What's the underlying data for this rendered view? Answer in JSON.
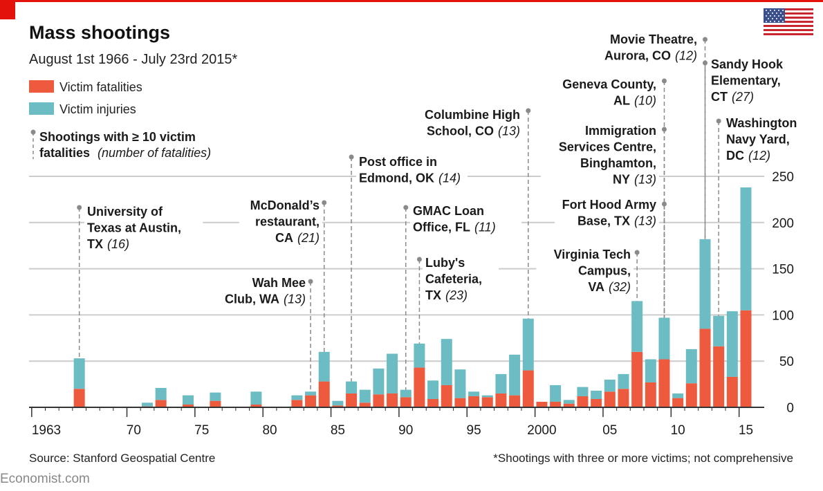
{
  "header": {
    "title": "Mass shootings",
    "subtitle": "August 1st 1966 - July 23rd 2015*"
  },
  "legend": {
    "fatalities": "Victim fatalities",
    "injuries": "Victim injuries",
    "marker_line1": "Shootings with ≥ 10 victim",
    "marker_line2a": "fatalities",
    "marker_line2b": "(number of fatalities)"
  },
  "footer": {
    "source": "Source: Stanford Geospatial Centre",
    "note": "*Shootings with three or more victims; not comprehensive",
    "brand": "Economist.com"
  },
  "colors": {
    "fatalities": "#ee5a3e",
    "injuries": "#6bbcc3",
    "accent": "#e3120b",
    "grid": "#cccccc",
    "annotation_line": "#8a8a8a"
  },
  "chart_data": {
    "type": "bar",
    "stacked": true,
    "title": "Mass shootings",
    "xlim": [
      1963,
      2015
    ],
    "ylim": [
      0,
      250
    ],
    "y_ticks": [
      0,
      50,
      100,
      150,
      200,
      250
    ],
    "x_tick_labels": [
      {
        "year": 1963,
        "label": "1963"
      },
      {
        "year": 1970,
        "label": "70"
      },
      {
        "year": 1975,
        "label": "75"
      },
      {
        "year": 1980,
        "label": "80"
      },
      {
        "year": 1985,
        "label": "85"
      },
      {
        "year": 1990,
        "label": "90"
      },
      {
        "year": 1995,
        "label": "95"
      },
      {
        "year": 2000,
        "label": "2000"
      },
      {
        "year": 2005,
        "label": "05"
      },
      {
        "year": 2010,
        "label": "10"
      },
      {
        "year": 2015,
        "label": "15"
      }
    ],
    "years": [
      1966,
      1971,
      1972,
      1974,
      1976,
      1979,
      1982,
      1983,
      1984,
      1985,
      1986,
      1987,
      1988,
      1989,
      1990,
      1991,
      1992,
      1993,
      1994,
      1995,
      1996,
      1997,
      1998,
      1999,
      2000,
      2001,
      2002,
      2003,
      2004,
      2005,
      2006,
      2007,
      2008,
      2009,
      2010,
      2011,
      2012,
      2013,
      2014,
      2015
    ],
    "fatalities": [
      20,
      1,
      8,
      3,
      7,
      3,
      8,
      13,
      28,
      2,
      15,
      5,
      14,
      15,
      11,
      43,
      9,
      24,
      10,
      12,
      11,
      15,
      13,
      40,
      6,
      6,
      4,
      12,
      9,
      17,
      20,
      60,
      27,
      52,
      10,
      26,
      85,
      66,
      33,
      105
    ],
    "injuries": [
      33,
      4,
      13,
      10,
      9,
      14,
      5,
      4,
      32,
      5,
      13,
      14,
      28,
      43,
      8,
      26,
      20,
      50,
      31,
      5,
      2,
      21,
      44,
      56,
      0,
      18,
      4,
      10,
      9,
      13,
      16,
      55,
      25,
      45,
      5,
      37,
      97,
      33,
      71,
      133
    ],
    "series": [
      {
        "name": "Victim fatalities",
        "key": "fatalities"
      },
      {
        "name": "Victim injuries",
        "key": "injuries"
      }
    ],
    "annotations": [
      {
        "year": 1966,
        "lines": [
          "University of",
          "Texas at Austin,",
          "TX"
        ],
        "num": "(16)",
        "align": "left"
      },
      {
        "year": 1983,
        "lines": [
          "Wah Mee",
          "Club, WA"
        ],
        "num": "(13)",
        "align": "right"
      },
      {
        "year": 1984,
        "lines": [
          "McDonald’s",
          "restaurant,",
          "CA"
        ],
        "num": "(21)",
        "align": "right"
      },
      {
        "year": 1986,
        "lines": [
          "Post office in",
          "Edmond, OK"
        ],
        "num": "(14)",
        "align": "left"
      },
      {
        "year": 1990,
        "lines": [
          "GMAC Loan",
          "Office, FL"
        ],
        "num": "(11)",
        "align": "left"
      },
      {
        "year": 1991,
        "lines": [
          "Luby's",
          "Cafeteria,",
          "TX"
        ],
        "num": "(23)",
        "align": "left"
      },
      {
        "year": 1999,
        "lines": [
          "Columbine High",
          "School, CO"
        ],
        "num": "(13)",
        "align": "right"
      },
      {
        "year": 2007,
        "lines": [
          "Virginia Tech",
          "Campus,",
          "VA"
        ],
        "num": "(32)",
        "align": "right"
      },
      {
        "year": 2009,
        "lines": [
          "Geneva County,",
          "AL"
        ],
        "num": "(10)",
        "align": "right"
      },
      {
        "year": 2009,
        "lines": [
          "Immigration",
          "Services Centre,",
          "Binghamton,",
          "NY"
        ],
        "num": "(13)",
        "align": "right"
      },
      {
        "year": 2009,
        "lines": [
          "Fort Hood Army",
          "Base, TX"
        ],
        "num": "(13)",
        "align": "right"
      },
      {
        "year": 2012,
        "lines": [
          "Movie Theatre,",
          "Aurora, CO"
        ],
        "num": "(12)",
        "align": "right"
      },
      {
        "year": 2012,
        "lines": [
          "Sandy Hook",
          "Elementary,",
          "CT"
        ],
        "num": "(27)",
        "align": "left"
      },
      {
        "year": 2013,
        "lines": [
          "Washington",
          "Navy Yard,",
          "DC"
        ],
        "num": "(12)",
        "align": "left"
      }
    ]
  }
}
